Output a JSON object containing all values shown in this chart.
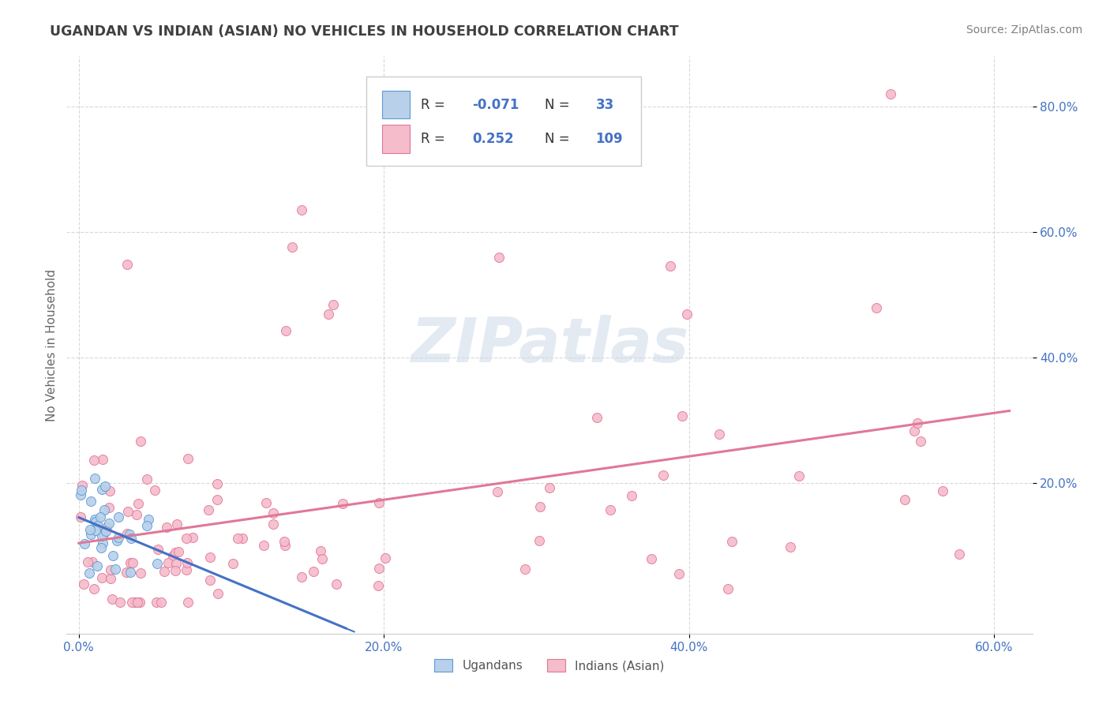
{
  "title": "UGANDAN VS INDIAN (ASIAN) NO VEHICLES IN HOUSEHOLD CORRELATION CHART",
  "source": "Source: ZipAtlas.com",
  "ylabel": "No Vehicles in Household",
  "xlim": [
    -0.008,
    0.625
  ],
  "ylim": [
    -0.04,
    0.88
  ],
  "xtick_vals": [
    0.0,
    0.2,
    0.4,
    0.6
  ],
  "xtick_labels": [
    "0.0%",
    "20.0%",
    "40.0%",
    "60.0%"
  ],
  "ytick_vals": [
    0.2,
    0.4,
    0.6,
    0.8
  ],
  "ytick_labels": [
    "20.0%",
    "40.0%",
    "60.0%",
    "80.0%"
  ],
  "ugandan_color": "#b8d0ea",
  "indian_color": "#f5bccb",
  "ugandan_edge": "#5b9bd5",
  "indian_edge": "#e07898",
  "ugandan_line_color": "#4472c4",
  "indian_line_solid": "#e07898",
  "background_color": "#ffffff",
  "watermark_color": "#ccd9e8",
  "legend_text_color": "#4472c4",
  "title_color": "#404040",
  "source_color": "#808080",
  "axis_label_color": "#4472c4",
  "grid_color": "#d0d0d0"
}
